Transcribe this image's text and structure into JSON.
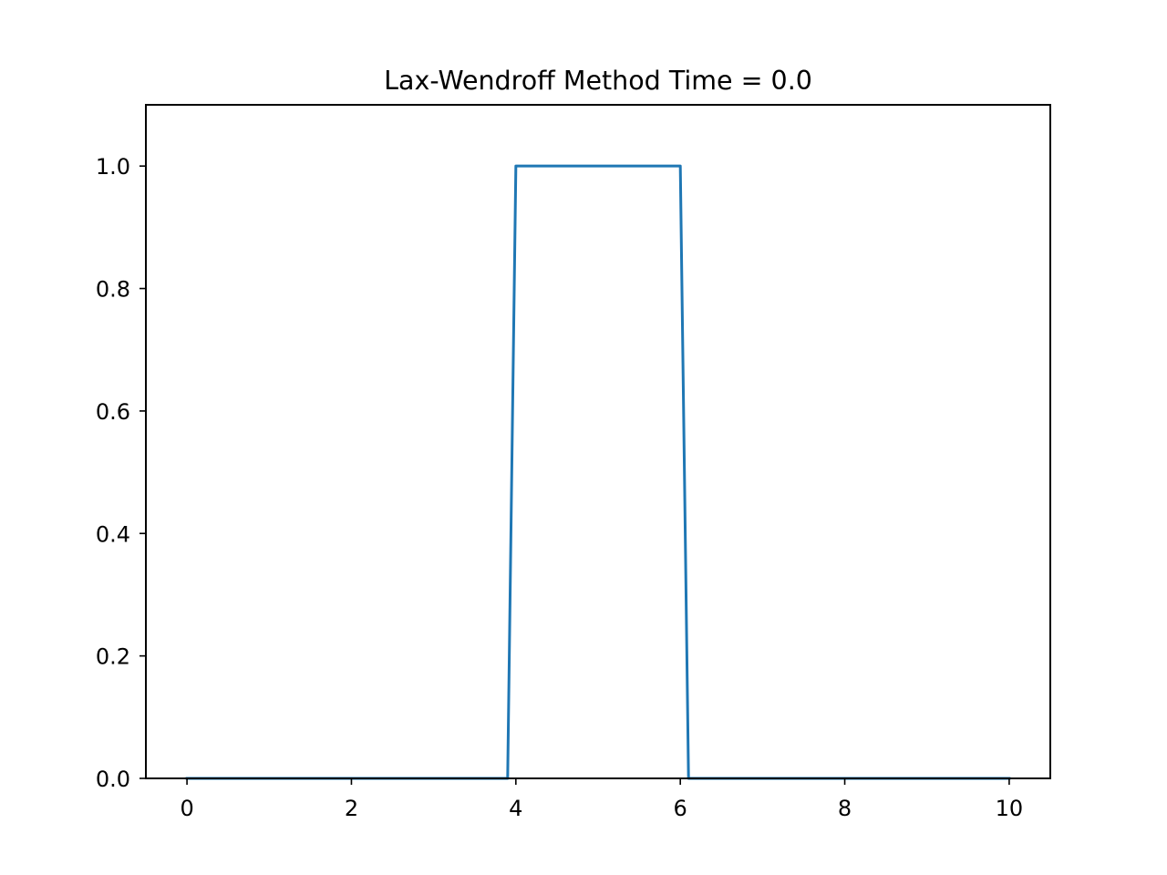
{
  "chart_data": {
    "type": "line",
    "title": "Lax-Wendroff Method Time = 0.0",
    "xlabel": "",
    "ylabel": "",
    "xlim": [
      -0.5,
      10.5
    ],
    "ylim": [
      0.0,
      1.1
    ],
    "grid": false,
    "x_ticks": [
      0,
      2,
      4,
      6,
      8,
      10
    ],
    "x_tick_labels": [
      "0",
      "2",
      "4",
      "6",
      "8",
      "10"
    ],
    "y_ticks": [
      0.0,
      0.2,
      0.4,
      0.6,
      0.8,
      1.0
    ],
    "y_tick_labels": [
      "0.0",
      "0.2",
      "0.4",
      "0.6",
      "0.8",
      "1.0"
    ],
    "series": [
      {
        "color": "#1f77b4",
        "x": [
          0.0,
          3.9,
          4.0,
          6.0,
          6.1,
          10.0
        ],
        "y": [
          0.0,
          0.0,
          1.0,
          1.0,
          0.0,
          0.0
        ]
      }
    ]
  }
}
